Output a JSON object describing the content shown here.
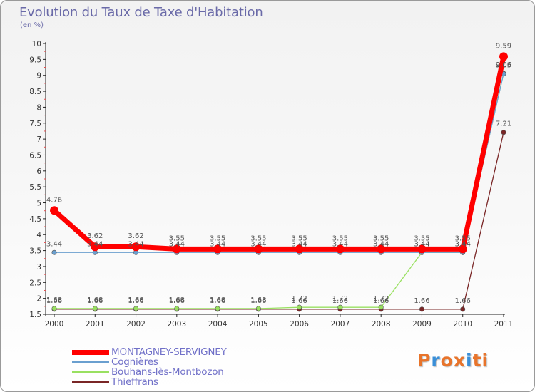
{
  "title": "Evolution du Taux de Taxe d'Habitation",
  "subtitle": "(en %)",
  "brand": {
    "letters": [
      "P",
      "r",
      "o",
      "x",
      "i",
      "t",
      "i"
    ],
    "colors": [
      "#e8742b",
      "#3a8fd8",
      "#e8742b",
      "#e8742b",
      "#3a8fd8",
      "#e8742b",
      "#e8742b"
    ]
  },
  "chart_data": {
    "type": "line",
    "x": [
      "2000",
      "2001",
      "2002",
      "2003",
      "2004",
      "2005",
      "2006",
      "2007",
      "2008",
      "2009",
      "2010",
      "2011"
    ],
    "ylim": [
      1.5,
      10
    ],
    "yticks": [
      "1.5",
      "2",
      "2.5",
      "3",
      "3.5",
      "4",
      "4.5",
      "5",
      "5.5",
      "6",
      "6.5",
      "7",
      "7.5",
      "8",
      "8.5",
      "9",
      "9.5",
      "10"
    ],
    "grid": false,
    "legend_position": "bottom-left",
    "series": [
      {
        "name": "MONTAGNEY-SERVIGNEY",
        "color": "#ff0000",
        "values": [
          4.76,
          3.62,
          3.62,
          3.55,
          3.55,
          3.55,
          3.55,
          3.55,
          3.55,
          3.55,
          3.55,
          9.59
        ],
        "labels": [
          "4.76",
          "3.62",
          "3.62",
          "3.55",
          "3.55",
          "3.55",
          "3.55",
          "3.55",
          "3.55",
          "3.55",
          "3.55",
          "9.59"
        ]
      },
      {
        "name": "Cognières",
        "color": "#6a9fcf",
        "values": [
          3.44,
          3.44,
          3.44,
          3.44,
          3.44,
          3.44,
          3.44,
          3.44,
          3.44,
          3.44,
          3.44,
          9.05
        ],
        "labels": [
          "3.44",
          "3.44",
          "3.44",
          "3.44",
          "3.44",
          "3.44",
          "3.44",
          "3.44",
          "3.44",
          "3.44",
          "3.44",
          "9.05"
        ]
      },
      {
        "name": "Bouhans-lès-Montbozon",
        "color": "#99e060",
        "values": [
          1.68,
          1.68,
          1.68,
          1.68,
          1.68,
          1.68,
          1.72,
          1.72,
          1.72,
          3.44,
          3.44,
          9.06
        ],
        "labels": [
          "1.68",
          "1.68",
          "1.68",
          "1.68",
          "1.68",
          "1.68",
          "1.72",
          "1.72",
          "1.72",
          "3.44",
          "3.44",
          "9.06"
        ]
      },
      {
        "name": "Thieffrans",
        "color": "#7a2626",
        "values": [
          1.66,
          1.66,
          1.66,
          1.66,
          1.66,
          1.66,
          1.66,
          1.66,
          1.66,
          1.66,
          1.66,
          7.21
        ],
        "labels": [
          "1.66",
          "1.66",
          "1.66",
          "1.66",
          "1.66",
          "1.66",
          "1.66",
          "1.66",
          "1.66",
          "1.66",
          "1.66",
          "7.21"
        ]
      }
    ]
  }
}
